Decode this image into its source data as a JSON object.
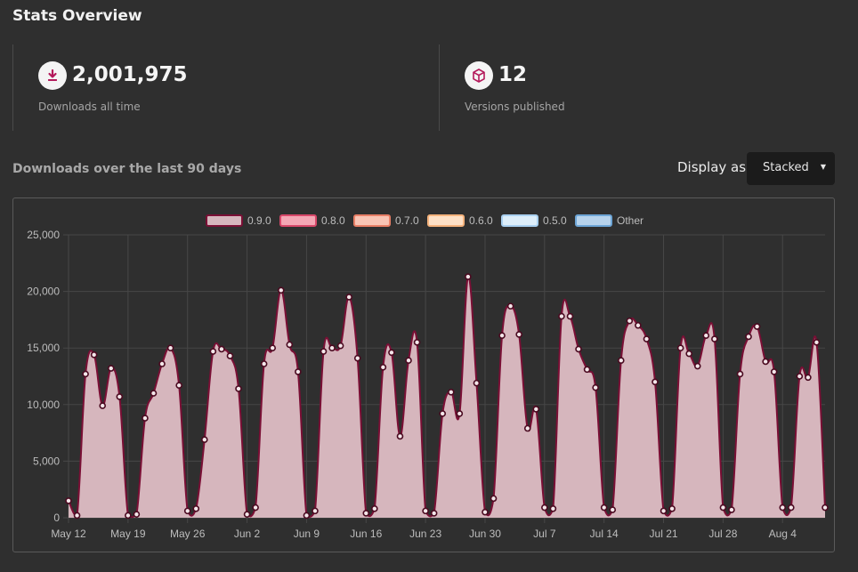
{
  "page": {
    "title": "Stats Overview"
  },
  "stats": [
    {
      "value": "2,001,975",
      "label": "Downloads all time",
      "icon": "download-icon"
    },
    {
      "value": "12",
      "label": "Versions published",
      "icon": "package-icon"
    }
  ],
  "section": {
    "title": "Downloads over the last 90 days"
  },
  "display": {
    "label": "Display as",
    "selected": "Stacked"
  },
  "colors": {
    "accent": "#b3185a",
    "series_fill": "#d6b6bd",
    "series_line": "#7a0f35",
    "bg": "#2f2f2f"
  },
  "chart_data": {
    "type": "area",
    "stacked": true,
    "legend": [
      {
        "name": "0.9.0",
        "fill": "#d6b6bd",
        "stroke": "#7a0f35"
      },
      {
        "name": "0.8.0",
        "fill": "#f4a7b5",
        "stroke": "#d8486a"
      },
      {
        "name": "0.7.0",
        "fill": "#f9c5b5",
        "stroke": "#e87f66"
      },
      {
        "name": "0.6.0",
        "fill": "#fde0c6",
        "stroke": "#f4b27c"
      },
      {
        "name": "0.5.0",
        "fill": "#ddeefa",
        "stroke": "#a9d0f0"
      },
      {
        "name": "Other",
        "fill": "#b7d3ec",
        "stroke": "#6da5d6"
      }
    ],
    "legend_position": "top",
    "grid": true,
    "ylim": [
      0,
      25000
    ],
    "y_ticks": [
      "0",
      "5,000",
      "10,000",
      "15,000",
      "20,000",
      "25,000"
    ],
    "x_ticks": [
      "May 12",
      "May 19",
      "May 26",
      "Jun 2",
      "Jun 9",
      "Jun 16",
      "Jun 23",
      "Jun 30",
      "Jul 7",
      "Jul 14",
      "Jul 21",
      "Jul 28",
      "Aug 4"
    ],
    "series": [
      {
        "name": "0.9.0",
        "values": [
          1500,
          200,
          12700,
          14400,
          9900,
          13200,
          10700,
          200,
          300,
          8800,
          11000,
          13600,
          15000,
          11700,
          600,
          800,
          6900,
          14700,
          14900,
          14300,
          11400,
          300,
          900,
          13600,
          15000,
          20100,
          15300,
          12900,
          200,
          600,
          14700,
          15000,
          15200,
          19500,
          14100,
          400,
          800,
          13300,
          14600,
          7200,
          13900,
          15500,
          600,
          400,
          9200,
          11100,
          9200,
          21300,
          11900,
          500,
          1700,
          16100,
          18700,
          16200,
          7900,
          9600,
          900,
          800,
          17800,
          17800,
          14900,
          13100,
          11500,
          900,
          700,
          13900,
          17400,
          17000,
          15800,
          12000,
          600,
          800,
          15000,
          14500,
          13400,
          16100,
          15800,
          900,
          700,
          12700,
          16000,
          16900,
          13800,
          12900,
          900,
          900,
          12500,
          12400,
          15500,
          900
        ]
      }
    ]
  }
}
